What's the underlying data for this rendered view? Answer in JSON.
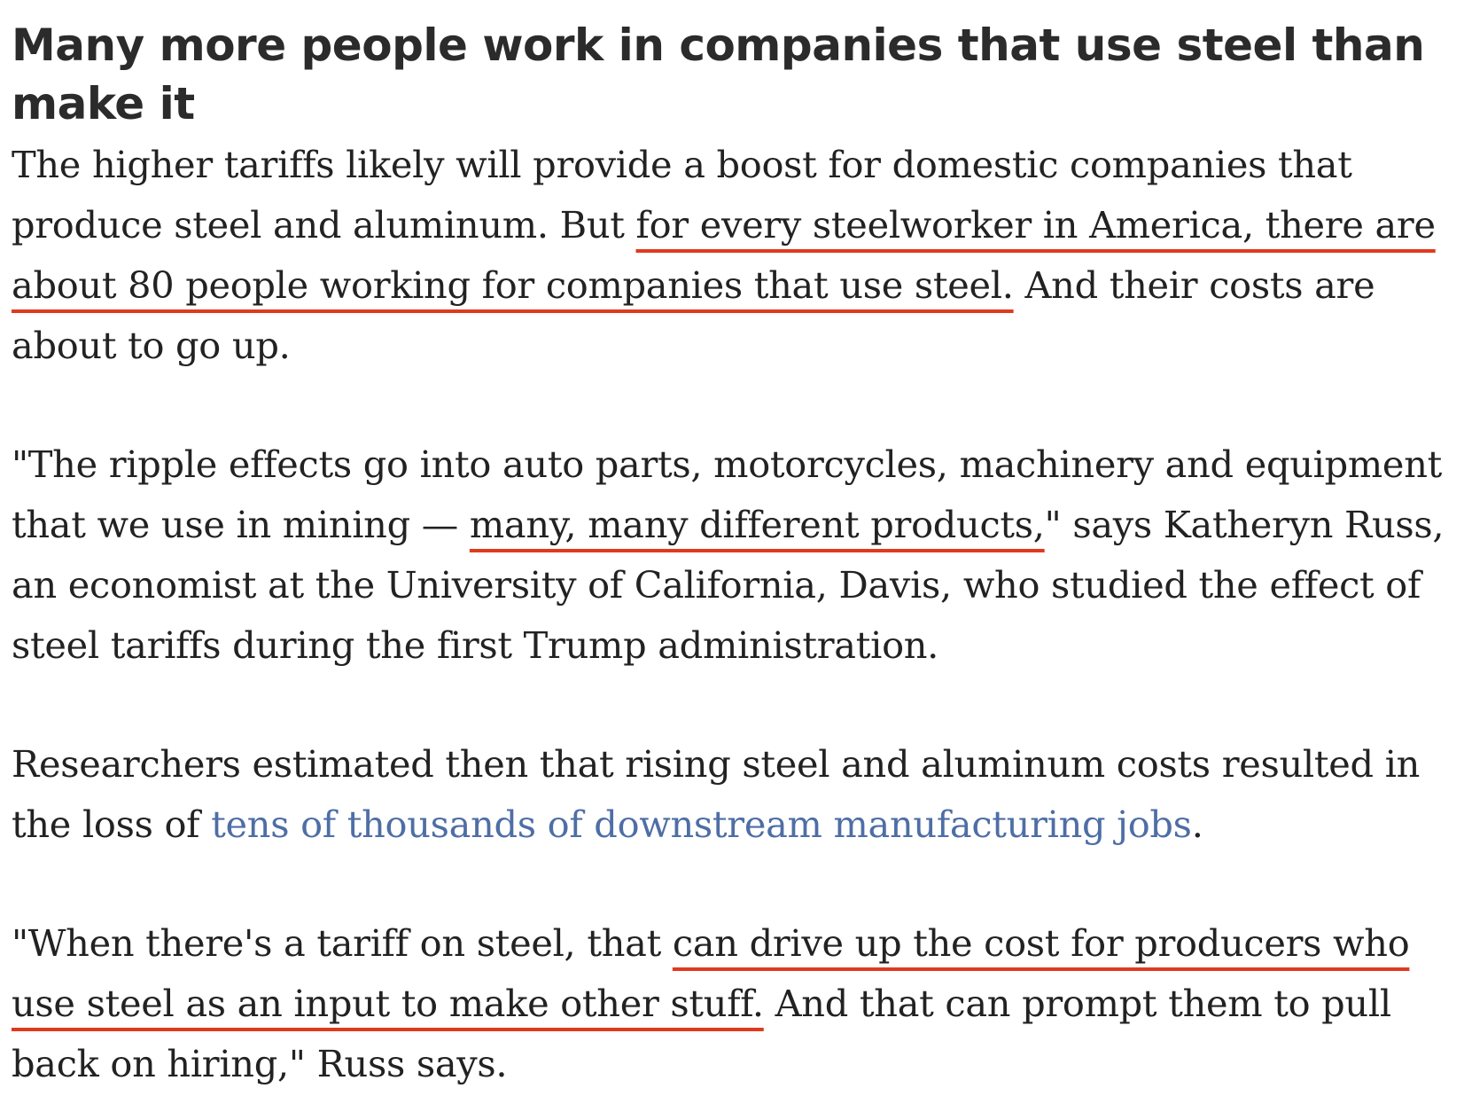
{
  "article": {
    "heading": "Many more people work in companies that use steel than make it",
    "p1": {
      "t1": "The higher tariffs likely will provide a boost for domestic companies that produce steel and aluminum. But ",
      "h1": "for every steelworker in America, there are about 80 people working for companies that use steel.",
      "t2": " And their costs are about to go up."
    },
    "p2": {
      "t1": "\"The ripple effects go into auto parts, motorcycles, machinery and equipment that we use in mining — ",
      "h1": "many, many different products,",
      "t2": "\" says Katheryn Russ, an economist at the University of California, Davis, who studied the effect of steel tariffs during the first Trump administration."
    },
    "p3": {
      "t1": "Researchers estimated then that rising steel and aluminum costs resulted in the loss of ",
      "link": "tens of thousands of downstream manufacturing jobs",
      "t2": "."
    },
    "p4": {
      "t1": "\"When there's a tariff on steel, that ",
      "h1": "can drive up the cost for producers who use steel as an input to make other stuff.",
      "t2": " And that can prompt them to pull back on hiring,\" Russ says."
    },
    "colors": {
      "underline": "#e03a1e",
      "link": "#4e6ea5",
      "text": "#222222"
    }
  }
}
